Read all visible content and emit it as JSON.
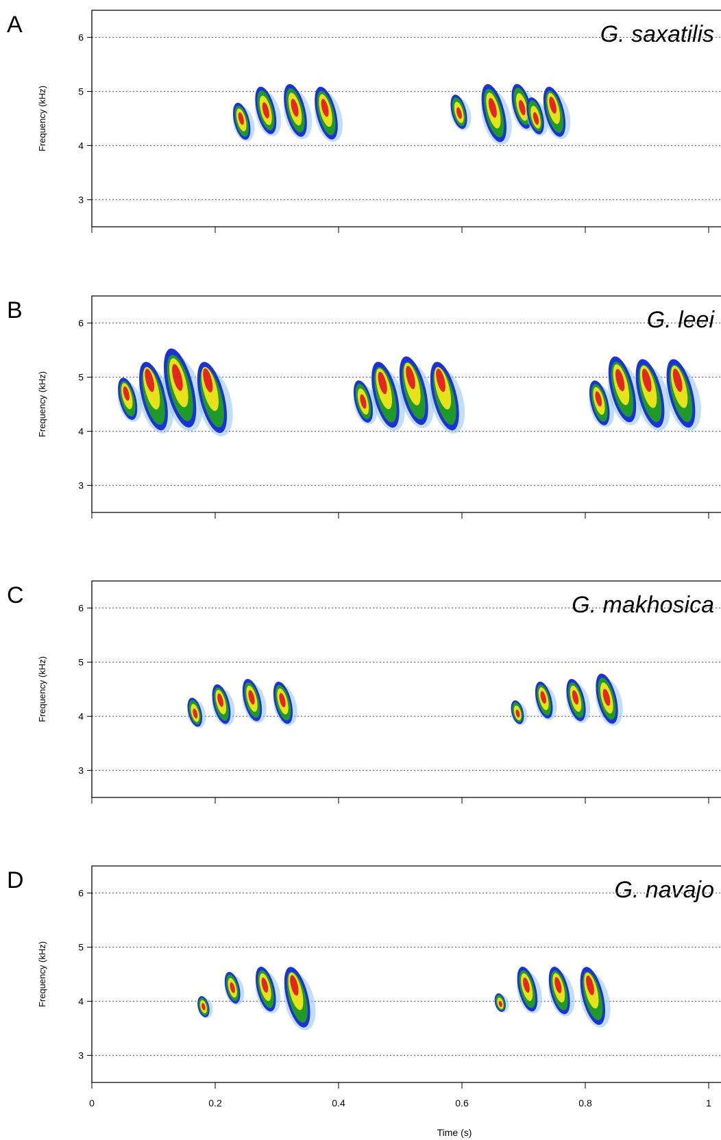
{
  "chart_data": [
    {
      "type": "spectrogram",
      "panel": "A",
      "title": "G. saxatilis",
      "ylabel": "Frequency (kHz)",
      "ylim": [
        2.5,
        6.5
      ],
      "yticks": [
        "3",
        "4",
        "5",
        "6"
      ],
      "xlim": [
        0,
        1.02
      ],
      "grid": "dotted horizontal at 3, 4, 5, 6 kHz",
      "notes": [
        {
          "t": 0.243,
          "f_low": 4.1,
          "f_high": 4.8,
          "peak": 4.5
        },
        {
          "t": 0.282,
          "f_low": 4.2,
          "f_high": 5.1,
          "peak": 4.65
        },
        {
          "t": 0.33,
          "f_low": 4.15,
          "f_high": 5.15,
          "peak": 4.7
        },
        {
          "t": 0.38,
          "f_low": 4.1,
          "f_high": 5.1,
          "peak": 4.7
        },
        {
          "t": 0.595,
          "f_low": 4.3,
          "f_high": 4.95,
          "peak": 4.6
        },
        {
          "t": 0.652,
          "f_low": 4.05,
          "f_high": 5.15,
          "peak": 4.7
        },
        {
          "t": 0.697,
          "f_low": 4.3,
          "f_high": 5.15,
          "peak": 4.7
        },
        {
          "t": 0.719,
          "f_low": 4.2,
          "f_high": 4.9,
          "peak": 4.5
        },
        {
          "t": 0.75,
          "f_low": 4.15,
          "f_high": 5.1,
          "peak": 4.75
        }
      ]
    },
    {
      "type": "spectrogram",
      "panel": "B",
      "title": "G. leei",
      "ylabel": "Frequency (kHz)",
      "ylim": [
        2.5,
        6.5
      ],
      "yticks": [
        "3",
        "4",
        "5",
        "6"
      ],
      "xlim": [
        0,
        1.02
      ],
      "grid": "dotted horizontal at 3, 4, 5, 6 kHz",
      "notes": [
        {
          "t": 0.058,
          "f_low": 4.2,
          "f_high": 5.0,
          "peak": 4.7
        },
        {
          "t": 0.1,
          "f_low": 4.0,
          "f_high": 5.3,
          "peak": 4.95
        },
        {
          "t": 0.143,
          "f_low": 4.05,
          "f_high": 5.55,
          "peak": 5.0
        },
        {
          "t": 0.195,
          "f_low": 3.95,
          "f_high": 5.3,
          "peak": 4.95
        },
        {
          "t": 0.44,
          "f_low": 4.15,
          "f_high": 4.95,
          "peak": 4.55
        },
        {
          "t": 0.476,
          "f_low": 4.05,
          "f_high": 5.3,
          "peak": 4.9
        },
        {
          "t": 0.522,
          "f_low": 4.1,
          "f_high": 5.4,
          "peak": 5.0
        },
        {
          "t": 0.572,
          "f_low": 4.0,
          "f_high": 5.3,
          "peak": 4.95
        },
        {
          "t": 0.823,
          "f_low": 4.1,
          "f_high": 4.95,
          "peak": 4.6
        },
        {
          "t": 0.86,
          "f_low": 4.15,
          "f_high": 5.4,
          "peak": 4.95
        },
        {
          "t": 0.905,
          "f_low": 4.05,
          "f_high": 5.35,
          "peak": 4.95
        },
        {
          "t": 0.955,
          "f_low": 4.05,
          "f_high": 5.35,
          "peak": 4.95
        }
      ]
    },
    {
      "type": "spectrogram",
      "panel": "C",
      "title": "G. makhosica",
      "ylabel": "Frequency (kHz)",
      "ylim": [
        2.5,
        6.5
      ],
      "yticks": [
        "3",
        "4",
        "5",
        "6"
      ],
      "xlim": [
        0,
        1.02
      ],
      "grid": "dotted horizontal at 3, 4, 5, 6 kHz",
      "notes": [
        {
          "t": 0.167,
          "f_low": 3.8,
          "f_high": 4.35,
          "peak": 4.05
        },
        {
          "t": 0.21,
          "f_low": 3.85,
          "f_high": 4.6,
          "peak": 4.3
        },
        {
          "t": 0.26,
          "f_low": 3.9,
          "f_high": 4.7,
          "peak": 4.35
        },
        {
          "t": 0.31,
          "f_low": 3.85,
          "f_high": 4.65,
          "peak": 4.3
        },
        {
          "t": 0.69,
          "f_low": 3.85,
          "f_high": 4.3,
          "peak": 4.05
        },
        {
          "t": 0.733,
          "f_low": 3.95,
          "f_high": 4.65,
          "peak": 4.35
        },
        {
          "t": 0.785,
          "f_low": 3.9,
          "f_high": 4.7,
          "peak": 4.35
        },
        {
          "t": 0.835,
          "f_low": 3.85,
          "f_high": 4.8,
          "peak": 4.35
        }
      ]
    },
    {
      "type": "spectrogram",
      "panel": "D",
      "title": "G. navajo",
      "xlabel": "Time (s)",
      "ylabel": "Frequency (kHz)",
      "ylim": [
        2.5,
        6.5
      ],
      "yticks": [
        "3",
        "4",
        "5",
        "6"
      ],
      "xlim": [
        0,
        1.02
      ],
      "xticks": [
        "0",
        "0.2",
        "0.4",
        "0.6",
        "0.8",
        "1"
      ],
      "grid": "dotted horizontal at 3, 4, 5, 6 kHz",
      "notes": [
        {
          "t": 0.181,
          "f_low": 3.7,
          "f_high": 4.1,
          "peak": 3.9
        },
        {
          "t": 0.228,
          "f_low": 3.95,
          "f_high": 4.55,
          "peak": 4.25
        },
        {
          "t": 0.282,
          "f_low": 3.8,
          "f_high": 4.65,
          "peak": 4.3
        },
        {
          "t": 0.333,
          "f_low": 3.5,
          "f_high": 4.65,
          "peak": 4.3
        },
        {
          "t": 0.662,
          "f_low": 3.8,
          "f_high": 4.15,
          "peak": 3.95
        },
        {
          "t": 0.706,
          "f_low": 3.8,
          "f_high": 4.65,
          "peak": 4.3
        },
        {
          "t": 0.758,
          "f_low": 3.75,
          "f_high": 4.65,
          "peak": 4.3
        },
        {
          "t": 0.812,
          "f_low": 3.55,
          "f_high": 4.65,
          "peak": 4.3
        }
      ]
    }
  ],
  "colors": {
    "outer": "#1b33d6",
    "mid": "#1f9a2a",
    "inner": "#e8e21a",
    "core": "#e2281f",
    "faint": "#8fc3ee",
    "grid": "#666666"
  }
}
